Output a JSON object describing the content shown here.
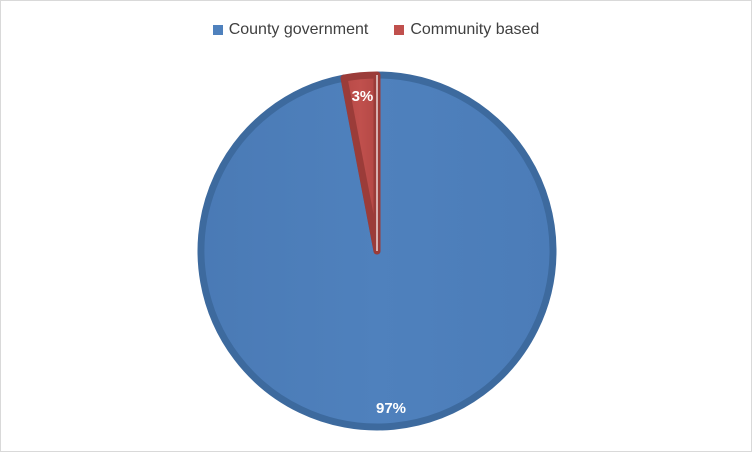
{
  "chart_data": {
    "type": "pie",
    "categories": [
      "County government",
      "Community based"
    ],
    "values": [
      97,
      3
    ],
    "data_labels": [
      "97%",
      "3%"
    ],
    "colors": [
      "#4f81bd",
      "#c0504d"
    ],
    "legend_position": "top"
  }
}
